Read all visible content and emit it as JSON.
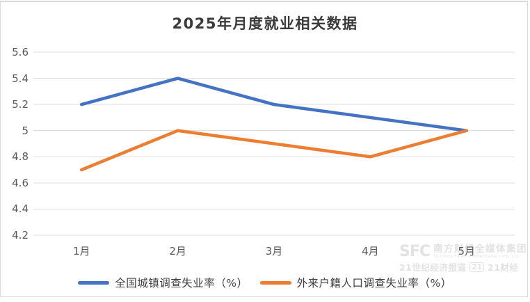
{
  "chart_data": {
    "type": "line",
    "title": "2025年月度就业相关数据",
    "categories": [
      "1月",
      "2月",
      "3月",
      "4月",
      "5月"
    ],
    "series": [
      {
        "name": "全国城镇调查失业率（%）",
        "color": "#4472C4",
        "values": [
          5.2,
          5.4,
          5.2,
          5.1,
          5.0
        ]
      },
      {
        "name": "外来户籍人口调查失业率（%）",
        "color": "#ED7D31",
        "values": [
          4.7,
          5.0,
          4.9,
          4.8,
          5.0
        ]
      }
    ],
    "xlabel": "",
    "ylabel": "",
    "ylim": [
      4.2,
      5.6
    ],
    "y_ticks": [
      {
        "value": 4.2,
        "label": "4.2"
      },
      {
        "value": 4.4,
        "label": "4.4"
      },
      {
        "value": 4.6,
        "label": "4.6"
      },
      {
        "value": 4.8,
        "label": "4.8"
      },
      {
        "value": 5.0,
        "label": "5"
      },
      {
        "value": 5.2,
        "label": "5.2"
      },
      {
        "value": 5.4,
        "label": "5.4"
      },
      {
        "value": 5.6,
        "label": "5.6"
      }
    ],
    "grid": true,
    "gridline_color": "#dedede",
    "legend_position": "bottom"
  },
  "watermark": {
    "logo": "SFC",
    "org_cn": "南方财经全媒体集团",
    "org_en": "Southern Finance Omnimedia Corp.,Ltd.",
    "brand1": "21世纪经济报道",
    "badge": "21",
    "brand2": "21财经"
  }
}
